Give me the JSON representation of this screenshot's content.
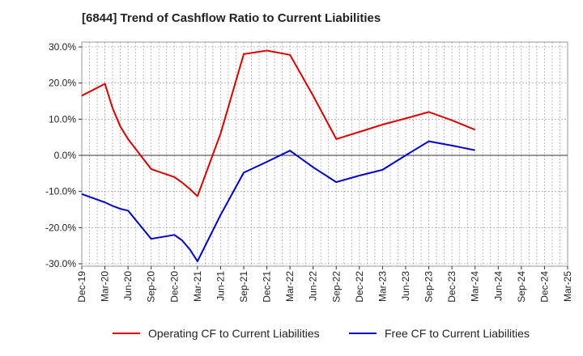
{
  "chart_data": {
    "type": "line",
    "title": "[6844]  Trend of Cashflow Ratio to Current Liabilities",
    "xlabel": "",
    "ylabel": "",
    "ylim": [
      -30,
      30
    ],
    "y_ticks": [
      "30.0%",
      "20.0%",
      "10.0%",
      "0.0%",
      "-10.0%",
      "-20.0%",
      "-30.0%"
    ],
    "y_tick_values": [
      30,
      20,
      10,
      0,
      -10,
      -20,
      -30
    ],
    "categories": [
      "Dec-19",
      "Mar-20",
      "Jun-20",
      "Sep-20",
      "Dec-20",
      "Mar-21",
      "Jun-21",
      "Sep-21",
      "Dec-21",
      "Mar-22",
      "Jun-22",
      "Sep-22",
      "Dec-22",
      "Mar-23",
      "Jun-23",
      "Sep-23",
      "Dec-23",
      "Mar-24",
      "Jun-24",
      "Sep-24",
      "Dec-24",
      "Mar-25"
    ],
    "grid": true,
    "legend_position": "bottom",
    "series": [
      {
        "name": "Operating CF to Current Liabilities",
        "color": "#dd0000",
        "x": [
          "Dec-19",
          "Mar-20",
          "Apr-20",
          "May-20",
          "Jun-20",
          "Sep-20",
          "Dec-20",
          "Jan-21",
          "Feb-21",
          "Mar-21",
          "Jun-21",
          "Sep-21",
          "Dec-21",
          "Mar-22",
          "Jun-22",
          "Sep-22",
          "Dec-22",
          "Mar-23",
          "Jun-23",
          "Sep-23",
          "Dec-23",
          "Mar-24"
        ],
        "values": [
          16.5,
          19.8,
          13.0,
          8.0,
          4.5,
          -3.8,
          -6.0,
          -7.5,
          -9.3,
          -11.3,
          6.0,
          28.0,
          29.0,
          27.8,
          16.5,
          4.5,
          6.5,
          8.5,
          10.2,
          12.0,
          9.7,
          7.1
        ]
      },
      {
        "name": "Free CF to Current Liabilities",
        "color": "#0000cc",
        "x": [
          "Dec-19",
          "Mar-20",
          "Apr-20",
          "May-20",
          "Jun-20",
          "Sep-20",
          "Dec-20",
          "Jan-21",
          "Feb-21",
          "Mar-21",
          "Jun-21",
          "Sep-21",
          "Dec-21",
          "Mar-22",
          "Jun-22",
          "Sep-22",
          "Dec-22",
          "Mar-23",
          "Jun-23",
          "Sep-23",
          "Dec-23",
          "Mar-24"
        ],
        "values": [
          -10.7,
          -13.0,
          -14.0,
          -14.8,
          -15.3,
          -23.1,
          -22.0,
          -23.5,
          -26.0,
          -29.3,
          -16.5,
          -4.8,
          -1.8,
          1.3,
          -3.3,
          -7.4,
          -5.6,
          -4.0,
          0.0,
          3.9,
          2.7,
          1.4
        ]
      }
    ]
  }
}
